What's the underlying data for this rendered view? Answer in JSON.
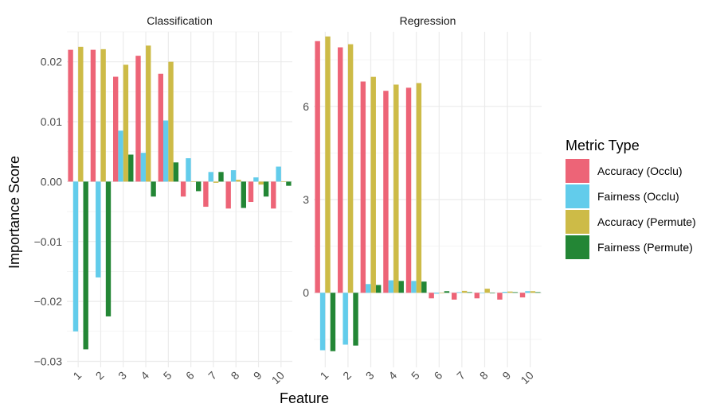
{
  "chart_data": {
    "type": "bar",
    "xlabel": "Feature",
    "ylabel": "Importance Score",
    "categories": [
      "1",
      "2",
      "3",
      "4",
      "5",
      "6",
      "7",
      "8",
      "9",
      "10"
    ],
    "legend": {
      "title": "Metric Type",
      "position": "right",
      "entries": [
        "Accuracy (Occlu)",
        "Fairness (Occlu)",
        "Accuracy (Permute)",
        "Fairness (Permute)"
      ]
    },
    "colors": {
      "Accuracy (Occlu)": "#ED6477",
      "Fairness (Occlu)": "#62CCEB",
      "Accuracy (Permute)": "#CDBB47",
      "Fairness (Permute)": "#238635"
    },
    "grid": true,
    "panels": [
      {
        "title": "Classification",
        "ylim": [
          -0.031,
          0.025
        ],
        "yticks": [
          -0.03,
          -0.02,
          -0.01,
          0.0,
          0.01,
          0.02
        ],
        "ytick_labels": [
          "−0.03",
          "−0.02",
          "−0.01",
          "0.00",
          "0.01",
          "0.02"
        ],
        "series": [
          {
            "name": "Accuracy (Occlu)",
            "values": [
              0.022,
              0.022,
              0.0175,
              0.021,
              0.018,
              -0.0025,
              -0.0042,
              -0.0045,
              -0.0034,
              -0.0045
            ]
          },
          {
            "name": "Fairness (Occlu)",
            "values": [
              -0.025,
              -0.016,
              0.0085,
              0.0048,
              0.0102,
              0.0039,
              0.0016,
              0.0019,
              0.0007,
              0.0025
            ]
          },
          {
            "name": "Accuracy (Permute)",
            "values": [
              0.0225,
              0.0221,
              0.0195,
              0.0227,
              0.02,
              0.0,
              -0.0002,
              0.0003,
              -0.0005,
              0.0
            ]
          },
          {
            "name": "Fairness (Permute)",
            "values": [
              -0.028,
              -0.0225,
              0.0045,
              -0.0025,
              0.0032,
              -0.0016,
              0.0016,
              -0.0044,
              -0.0025,
              -0.0007
            ]
          }
        ]
      },
      {
        "title": "Regression",
        "ylim": [
          -2.4,
          8.4
        ],
        "yticks": [
          0,
          3,
          6
        ],
        "ytick_labels": [
          "0",
          "3",
          "6"
        ],
        "series": [
          {
            "name": "Accuracy (Occlu)",
            "values": [
              8.1,
              7.9,
              6.8,
              6.5,
              6.6,
              -0.18,
              -0.22,
              -0.18,
              -0.22,
              -0.15
            ]
          },
          {
            "name": "Fairness (Occlu)",
            "values": [
              -1.85,
              -1.67,
              0.28,
              0.4,
              0.38,
              -0.03,
              0.02,
              0.0,
              0.03,
              0.05
            ]
          },
          {
            "name": "Accuracy (Permute)",
            "values": [
              8.25,
              8.0,
              6.95,
              6.7,
              6.75,
              0.0,
              0.06,
              0.13,
              0.04,
              0.05
            ]
          },
          {
            "name": "Fairness (Permute)",
            "values": [
              -1.88,
              -1.7,
              0.25,
              0.38,
              0.36,
              0.05,
              0.02,
              0.0,
              0.02,
              0.02
            ]
          }
        ]
      }
    ]
  }
}
